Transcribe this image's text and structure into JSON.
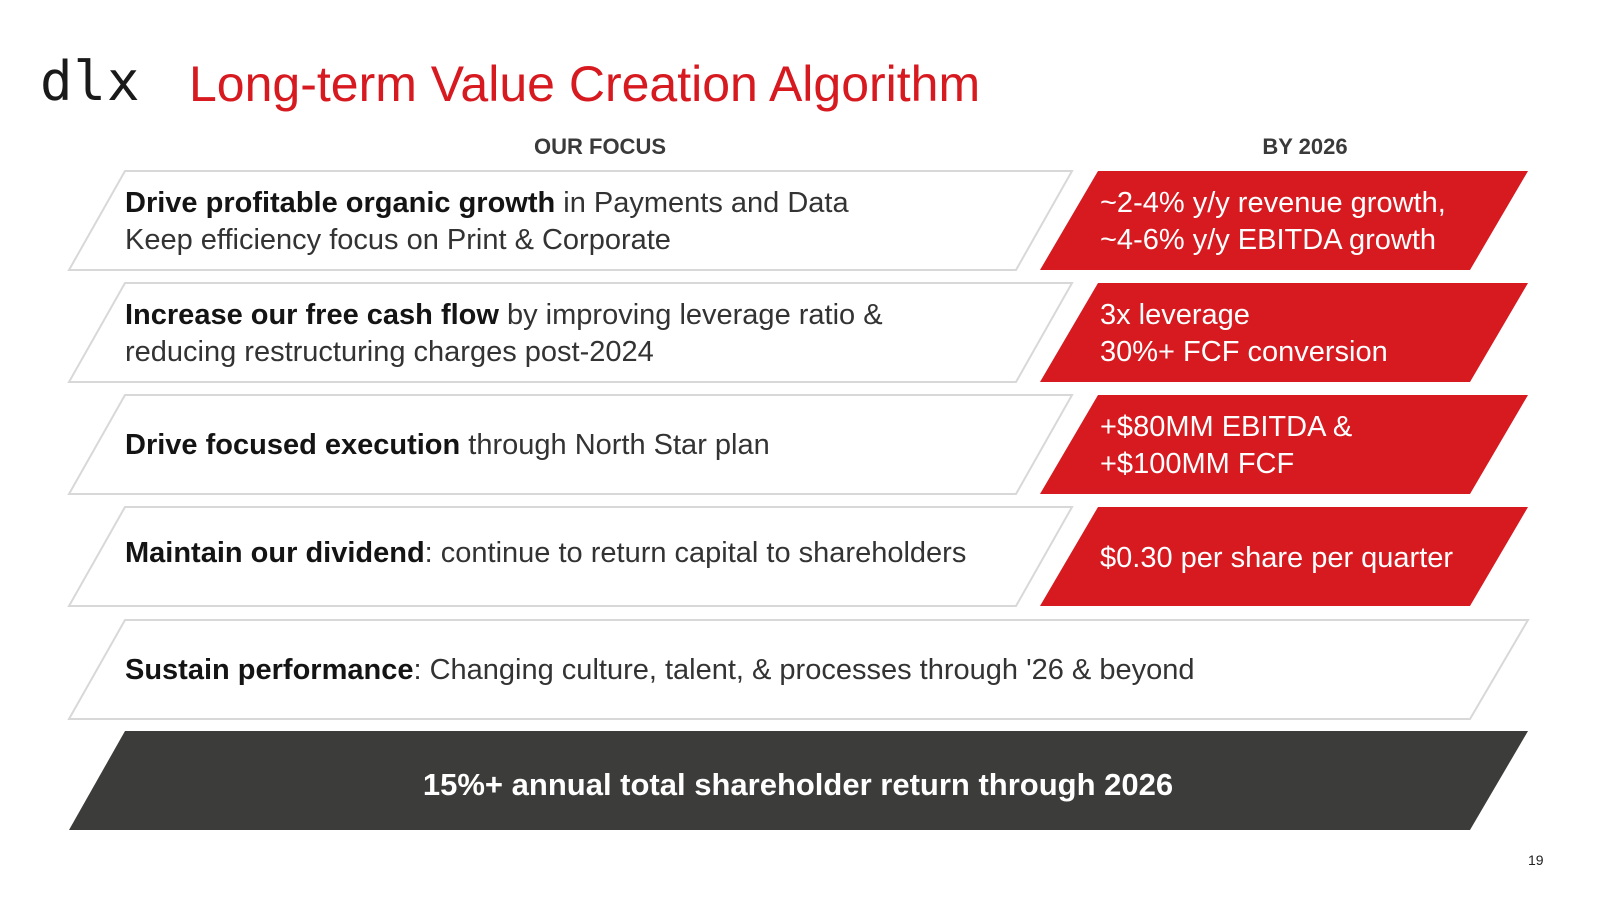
{
  "header": {
    "logo": "dlx",
    "title": "Long-term Value Creation Algorithm"
  },
  "columns": {
    "focus": "OUR FOCUS",
    "target": "BY 2026"
  },
  "rows": [
    {
      "lines": [
        {
          "bold": "Drive profitable organic growth",
          "rest": " in Payments and Data"
        },
        {
          "bold": "",
          "rest": "Keep efficiency focus on Print & Corporate"
        }
      ],
      "target": [
        "~2-4% y/y revenue growth,",
        "~4-6% y/y EBITDA growth"
      ]
    },
    {
      "lines": [
        {
          "bold": "Increase our free cash flow",
          "rest": " by improving leverage ratio &"
        },
        {
          "bold": "",
          "rest": "reducing restructuring charges post-2024"
        }
      ],
      "target": [
        "3x leverage",
        "30%+ FCF conversion"
      ]
    },
    {
      "lines": [
        {
          "bold": "Drive focused execution",
          "rest": " through North Star plan"
        }
      ],
      "target": [
        "+$80MM EBITDA &",
        "+$100MM FCF"
      ]
    },
    {
      "lines": [
        {
          "bold": "Maintain our dividend",
          "rest": ": continue to return capital to shareholders"
        }
      ],
      "target": [
        "$0.30 per share per quarter"
      ]
    }
  ],
  "sustain": {
    "bold": "Sustain performance",
    "rest": ": Changing culture, talent, & processes through '26 & beyond"
  },
  "total": "15%+ annual total shareholder return through 2026",
  "page_number": "19",
  "colors": {
    "accent": "#d71920",
    "dark": "#3c3d3a",
    "border": "#d8d8d8"
  }
}
